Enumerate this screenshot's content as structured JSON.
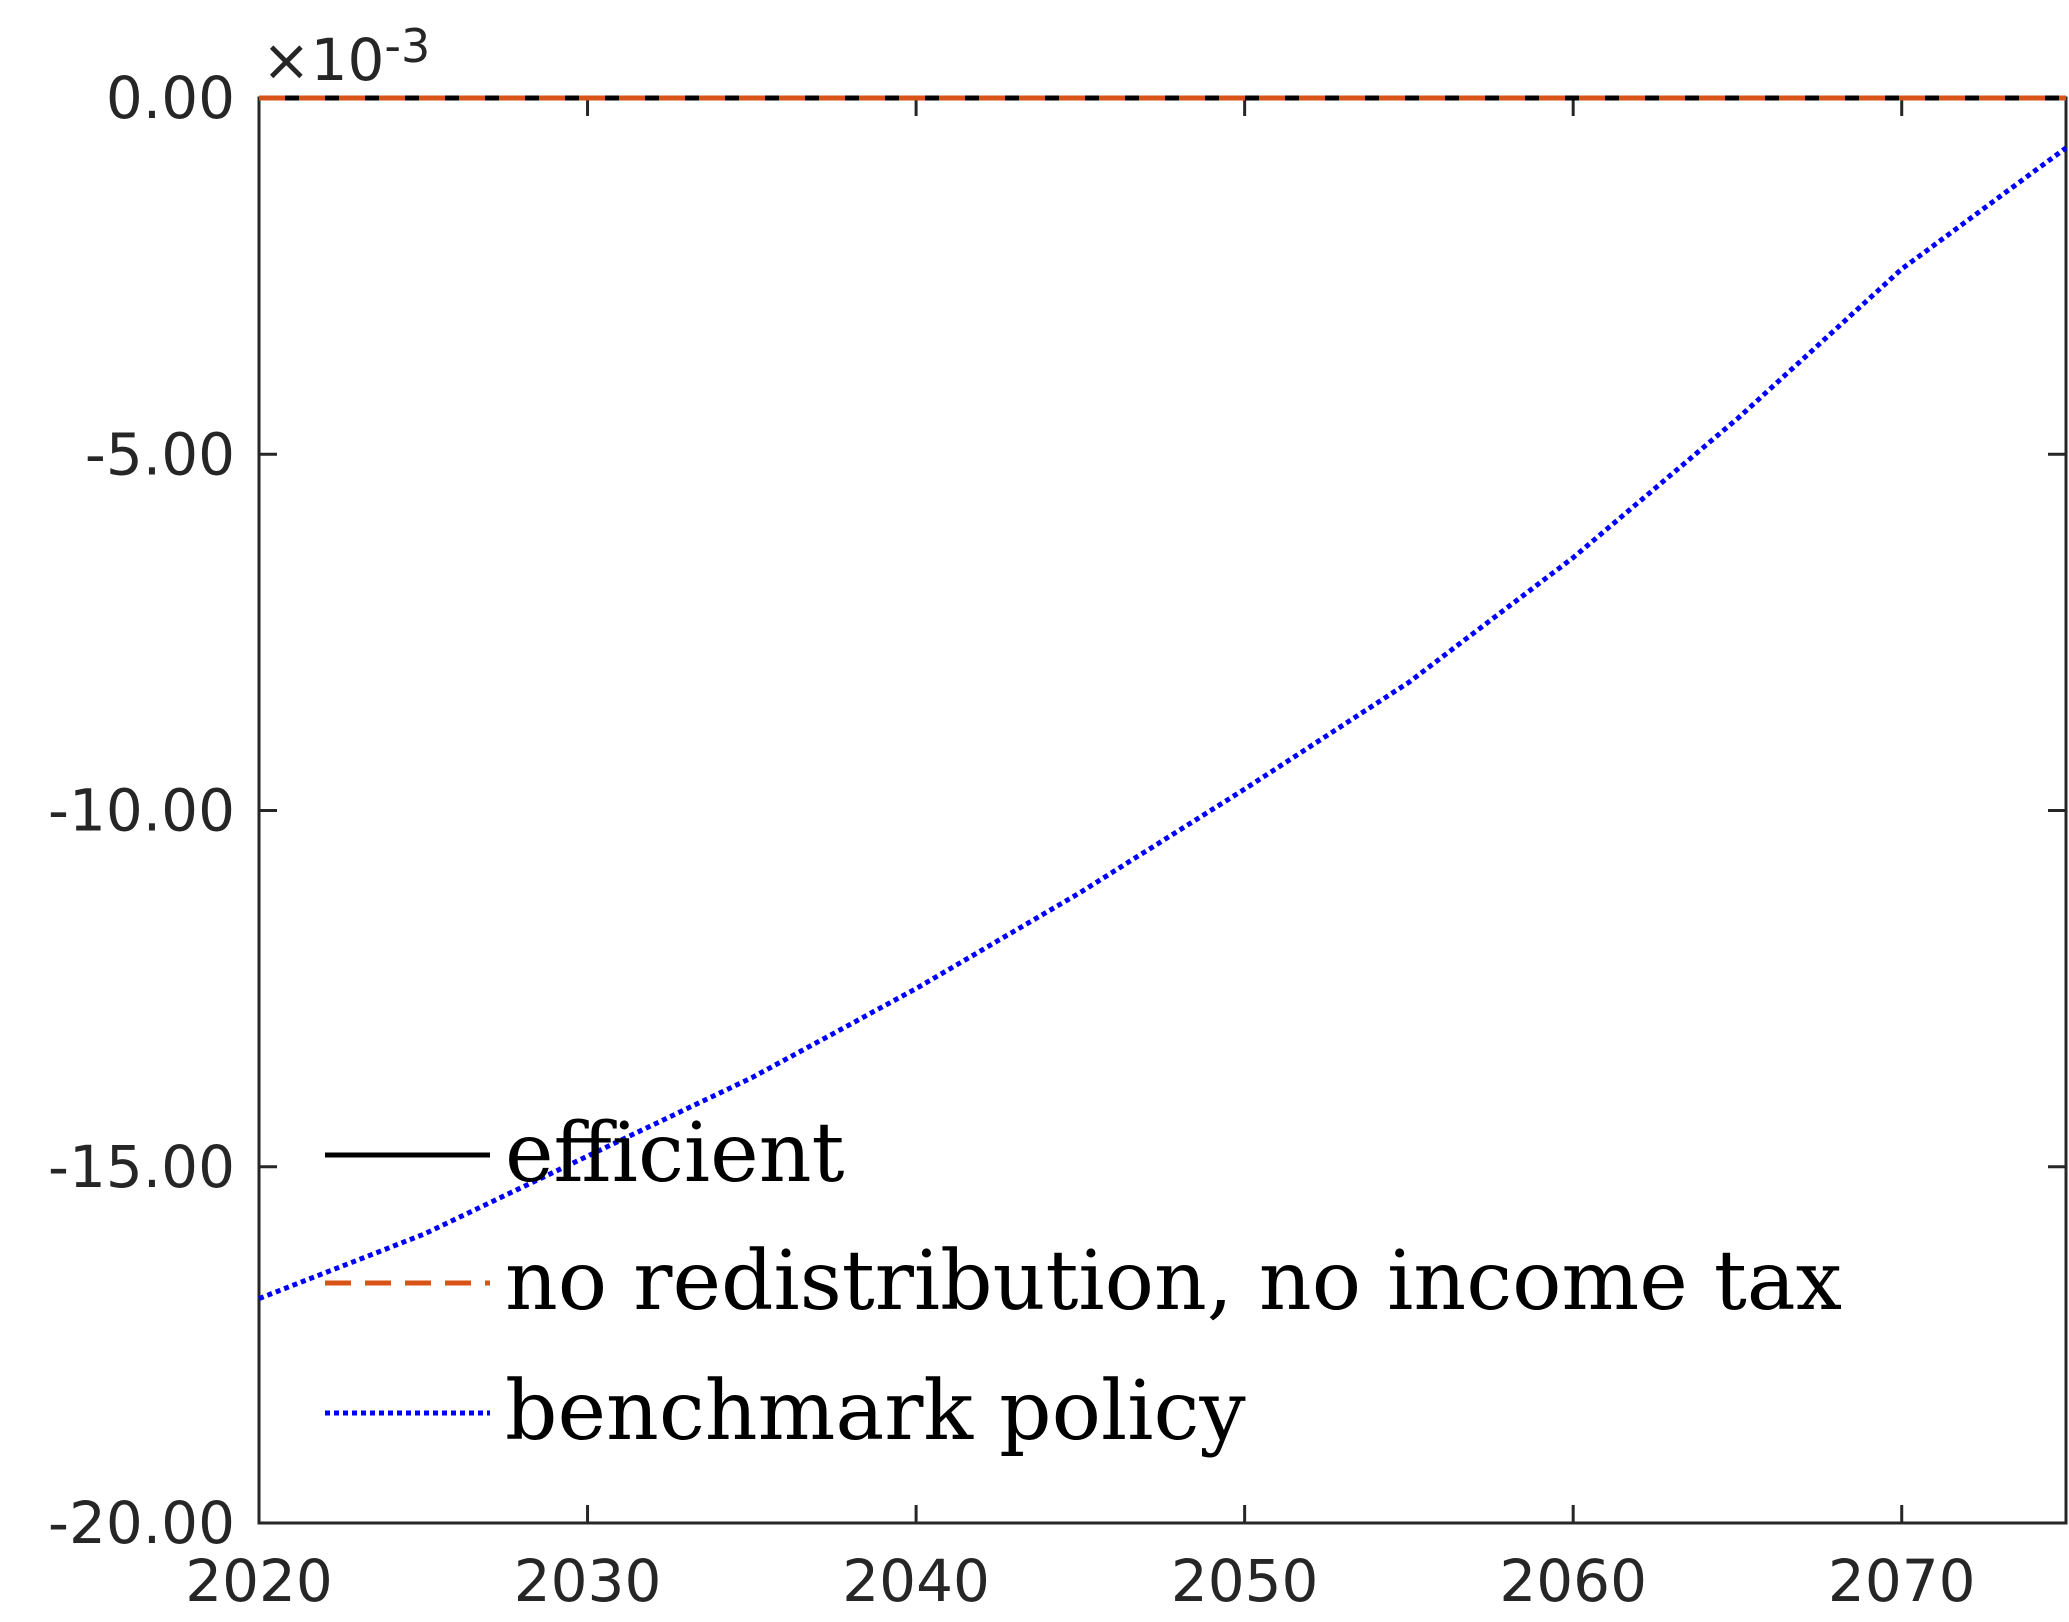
{
  "chart_data": {
    "type": "line",
    "title": "",
    "xlabel": "",
    "ylabel": "",
    "xlim": [
      2020,
      2075
    ],
    "ylim": [
      -20.0,
      0.0
    ],
    "y_exponent_label": "×10",
    "y_exponent_power": "-3",
    "x_ticks": [
      2020,
      2030,
      2040,
      2050,
      2060,
      2070
    ],
    "x_tick_labels": [
      "2020",
      "2030",
      "2040",
      "2050",
      "2060",
      "2070"
    ],
    "y_ticks": [
      0,
      -5,
      -10,
      -15,
      -20
    ],
    "y_tick_labels": [
      "0.00",
      "-5.00",
      "-10.00",
      "-15.00",
      "-20.00"
    ],
    "grid": false,
    "legend_position": "bottom-left",
    "series": [
      {
        "name": "efficient",
        "color": "#000000",
        "style": "solid",
        "x": [
          2020,
          2030,
          2040,
          2050,
          2060,
          2070,
          2075
        ],
        "y": [
          0,
          0,
          0,
          0,
          0,
          0,
          0
        ]
      },
      {
        "name": "no redistribution, no income tax",
        "color": "#D95319",
        "style": "dashed",
        "x": [
          2020,
          2030,
          2040,
          2050,
          2060,
          2070,
          2075
        ],
        "y": [
          0,
          0,
          0,
          0,
          0,
          0,
          0
        ]
      },
      {
        "name": "benchmark policy",
        "color": "#0000FF",
        "style": "dotted",
        "x": [
          2020,
          2025,
          2030,
          2035,
          2040,
          2045,
          2050,
          2055,
          2060,
          2065,
          2070,
          2075
        ],
        "y": [
          -16.85,
          -15.95,
          -14.85,
          -13.75,
          -12.5,
          -11.15,
          -9.7,
          -8.2,
          -6.45,
          -4.5,
          -2.4,
          -0.7
        ]
      }
    ]
  }
}
